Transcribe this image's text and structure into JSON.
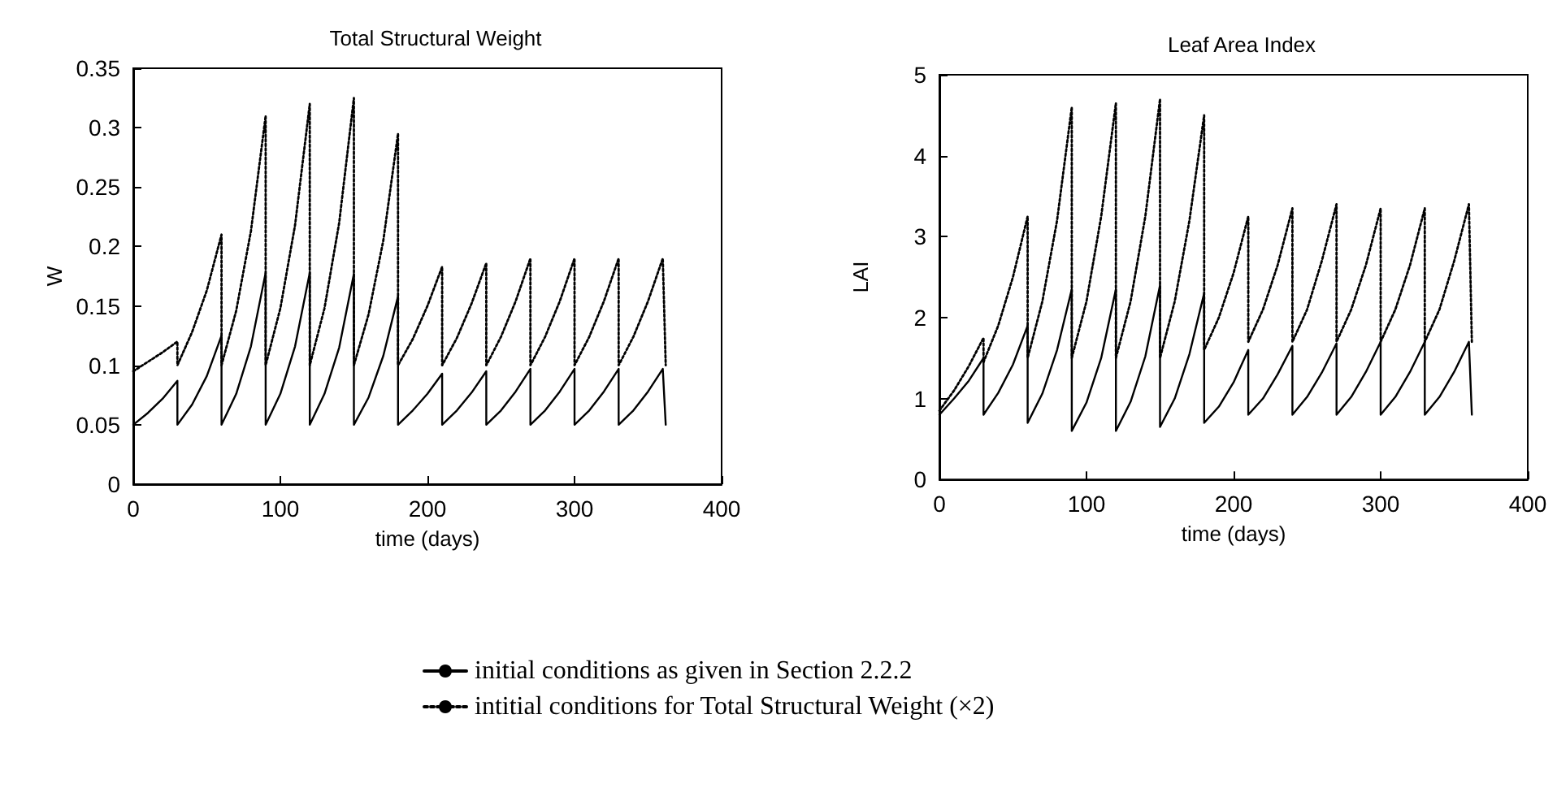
{
  "chart_data": [
    {
      "type": "line",
      "title": "Total Structural Weight",
      "xlabel": "time (days)",
      "ylabel": "W",
      "xlim": [
        0,
        400
      ],
      "xticks": [
        0,
        100,
        200,
        300,
        400
      ],
      "ylim": [
        0,
        0.35
      ],
      "yticks": [
        0,
        0.05,
        0.1,
        0.15,
        0.2,
        0.25,
        0.3,
        0.35
      ],
      "grid": false,
      "legend": "bottom",
      "marker": "none",
      "x": [
        0,
        10,
        20,
        30,
        30,
        40,
        50,
        60,
        60,
        70,
        80,
        90,
        90,
        100,
        110,
        120,
        120,
        130,
        140,
        150,
        150,
        160,
        170,
        180,
        180,
        190,
        200,
        210,
        210,
        220,
        230,
        240,
        240,
        250,
        260,
        270,
        270,
        280,
        290,
        300,
        300,
        310,
        320,
        330,
        330,
        340,
        350,
        360,
        362
      ],
      "series": [
        {
          "name": "initial conditions as given in Section 2.2.2",
          "color": "#000000",
          "line_style": "solid",
          "values": [
            0.05,
            0.06,
            0.072,
            0.087,
            0.05,
            0.067,
            0.091,
            0.125,
            0.05,
            0.076,
            0.116,
            0.178,
            0.05,
            0.076,
            0.116,
            0.178,
            0.05,
            0.076,
            0.115,
            0.177,
            0.05,
            0.073,
            0.108,
            0.158,
            0.05,
            0.062,
            0.076,
            0.093,
            0.05,
            0.062,
            0.077,
            0.095,
            0.05,
            0.062,
            0.078,
            0.097,
            0.05,
            0.062,
            0.078,
            0.097,
            0.05,
            0.062,
            0.078,
            0.097,
            0.05,
            0.062,
            0.078,
            0.097,
            0.05
          ]
        },
        {
          "name": "intitial conditions for Total Structural Weight (×2)",
          "color": "#000000",
          "line_style": "dotted",
          "values": [
            0.095,
            0.103,
            0.111,
            0.12,
            0.1,
            0.128,
            0.163,
            0.21,
            0.1,
            0.146,
            0.213,
            0.31,
            0.1,
            0.148,
            0.218,
            0.32,
            0.1,
            0.148,
            0.22,
            0.325,
            0.1,
            0.143,
            0.205,
            0.295,
            0.1,
            0.122,
            0.15,
            0.183,
            0.1,
            0.123,
            0.152,
            0.186,
            0.1,
            0.124,
            0.154,
            0.19,
            0.1,
            0.124,
            0.154,
            0.19,
            0.1,
            0.124,
            0.154,
            0.19,
            0.1,
            0.124,
            0.154,
            0.19,
            0.1
          ]
        }
      ]
    },
    {
      "type": "line",
      "title": "Leaf Area Index",
      "xlabel": "time (days)",
      "ylabel": "LAI",
      "xlim": [
        0,
        400
      ],
      "xticks": [
        0,
        100,
        200,
        300,
        400
      ],
      "ylim": [
        0,
        5
      ],
      "yticks": [
        0,
        1,
        2,
        3,
        4,
        5
      ],
      "grid": false,
      "marker": "none",
      "x": [
        0,
        10,
        20,
        30,
        30,
        40,
        50,
        60,
        60,
        70,
        80,
        90,
        90,
        100,
        110,
        120,
        120,
        130,
        140,
        150,
        150,
        160,
        170,
        180,
        180,
        190,
        200,
        210,
        210,
        220,
        230,
        240,
        240,
        250,
        260,
        270,
        270,
        280,
        290,
        300,
        300,
        310,
        320,
        330,
        330,
        340,
        350,
        360,
        362
      ],
      "series": [
        {
          "color": "#000000",
          "line_style": "solid",
          "values": [
            0.8,
            1.0,
            1.22,
            1.5,
            0.8,
            1.07,
            1.42,
            1.9,
            0.7,
            1.06,
            1.6,
            2.35,
            0.6,
            0.95,
            1.5,
            2.35,
            0.6,
            0.96,
            1.52,
            2.4,
            0.65,
            1.0,
            1.55,
            2.3,
            0.7,
            0.9,
            1.2,
            1.6,
            0.8,
            1.0,
            1.3,
            1.65,
            0.8,
            1.02,
            1.32,
            1.68,
            0.8,
            1.02,
            1.33,
            1.7,
            0.8,
            1.02,
            1.33,
            1.7,
            0.8,
            1.02,
            1.33,
            1.7,
            0.8
          ]
        },
        {
          "color": "#000000",
          "line_style": "dotted",
          "values": [
            0.85,
            1.1,
            1.4,
            1.75,
            1.45,
            1.9,
            2.5,
            3.25,
            1.5,
            2.2,
            3.2,
            4.6,
            1.5,
            2.2,
            3.25,
            4.65,
            1.5,
            2.2,
            3.25,
            4.7,
            1.5,
            2.2,
            3.2,
            4.5,
            1.6,
            2.0,
            2.55,
            3.25,
            1.7,
            2.1,
            2.65,
            3.35,
            1.7,
            2.1,
            2.7,
            3.4,
            1.7,
            2.1,
            2.65,
            3.35,
            1.7,
            2.1,
            2.65,
            3.35,
            1.7,
            2.1,
            2.7,
            3.4,
            1.7
          ]
        }
      ]
    }
  ]
}
